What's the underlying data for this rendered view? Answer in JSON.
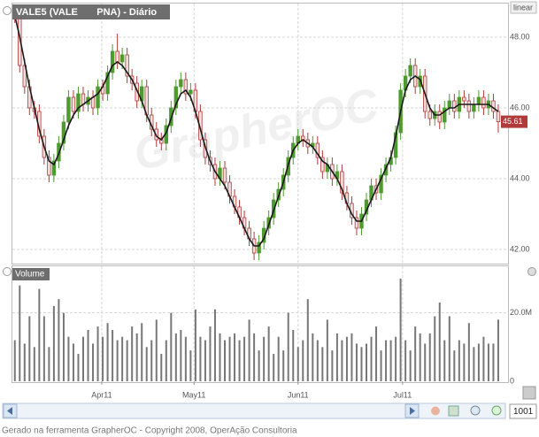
{
  "chart_data": {
    "type": "candlestick",
    "title": "VALE5 (VALE       PNA) - Diário",
    "scale_label": "linear",
    "watermark": "GrapherOC",
    "up_color": "#4f9a2e",
    "down_color": "#b03a3a",
    "xlim": [
      -0.5,
      101
    ],
    "xticks": [
      {
        "value": 17.8,
        "label": "Apr11"
      },
      {
        "value": 36.7,
        "label": "May11"
      },
      {
        "value": 58,
        "label": "Jun11"
      },
      {
        "value": 79.4,
        "label": "Jul11"
      }
    ],
    "ylim": [
      41.6,
      48.95
    ],
    "yticks": [
      {
        "value": 42,
        "label": "42.00"
      },
      {
        "value": 44,
        "label": "44.00"
      },
      {
        "value": 46,
        "label": "46.00"
      },
      {
        "value": 48,
        "label": "48.00"
      }
    ],
    "grid": true,
    "candles": [
      [
        48.8,
        48.9,
        48.4,
        48.6
      ],
      [
        48.6,
        48.8,
        47.0,
        47.2
      ],
      [
        47.2,
        47.4,
        46.4,
        46.6
      ],
      [
        46.6,
        46.8,
        45.8,
        46.0
      ],
      [
        46.0,
        46.2,
        45.7,
        45.9
      ],
      [
        45.9,
        46.1,
        45.0,
        45.2
      ],
      [
        45.2,
        45.4,
        44.4,
        44.6
      ],
      [
        44.6,
        44.8,
        43.9,
        44.1
      ],
      [
        44.1,
        44.7,
        43.9,
        44.5
      ],
      [
        44.5,
        45.2,
        44.3,
        45.0
      ],
      [
        45.0,
        45.8,
        44.8,
        45.6
      ],
      [
        45.6,
        46.5,
        45.4,
        46.3
      ],
      [
        46.3,
        46.5,
        45.7,
        45.9
      ],
      [
        45.9,
        46.6,
        45.7,
        46.4
      ],
      [
        46.4,
        46.6,
        45.9,
        46.1
      ],
      [
        46.1,
        46.5,
        45.9,
        46.3
      ],
      [
        46.3,
        46.5,
        45.8,
        46.0
      ],
      [
        46.0,
        46.8,
        45.8,
        46.6
      ],
      [
        46.6,
        46.8,
        46.2,
        46.4
      ],
      [
        46.4,
        47.2,
        46.2,
        47.0
      ],
      [
        47.0,
        47.8,
        46.8,
        47.6
      ],
      [
        47.6,
        48.1,
        47.1,
        47.3
      ],
      [
        47.3,
        47.7,
        47.1,
        47.5
      ],
      [
        47.5,
        47.7,
        46.7,
        46.9
      ],
      [
        46.9,
        47.1,
        46.5,
        46.7
      ],
      [
        46.7,
        46.9,
        46.0,
        46.2
      ],
      [
        46.2,
        46.8,
        46.0,
        46.6
      ],
      [
        46.6,
        46.8,
        45.6,
        45.8
      ],
      [
        45.8,
        46.0,
        45.2,
        45.4
      ],
      [
        45.4,
        45.6,
        44.9,
        45.1
      ],
      [
        45.1,
        45.3,
        44.8,
        45.0
      ],
      [
        45.0,
        45.7,
        44.8,
        45.5
      ],
      [
        45.5,
        46.2,
        45.3,
        46.0
      ],
      [
        46.0,
        46.8,
        45.8,
        46.6
      ],
      [
        46.6,
        47.0,
        46.4,
        46.8
      ],
      [
        46.8,
        47.0,
        46.2,
        46.4
      ],
      [
        46.4,
        46.7,
        46.2,
        46.5
      ],
      [
        46.5,
        46.7,
        45.7,
        45.9
      ],
      [
        45.9,
        46.1,
        44.9,
        45.1
      ],
      [
        45.1,
        45.3,
        44.4,
        44.6
      ],
      [
        44.6,
        44.8,
        44.2,
        44.4
      ],
      [
        44.4,
        44.6,
        43.8,
        44.0
      ],
      [
        44.0,
        44.5,
        43.8,
        44.3
      ],
      [
        44.3,
        44.5,
        43.7,
        43.9
      ],
      [
        43.9,
        44.1,
        43.3,
        43.5
      ],
      [
        43.5,
        43.7,
        43.0,
        43.2
      ],
      [
        43.2,
        43.4,
        42.7,
        42.9
      ],
      [
        42.9,
        43.1,
        42.4,
        42.6
      ],
      [
        42.6,
        42.8,
        42.1,
        42.3
      ],
      [
        42.3,
        42.5,
        41.7,
        41.9
      ],
      [
        41.9,
        42.4,
        41.7,
        42.2
      ],
      [
        42.2,
        42.8,
        42.0,
        42.6
      ],
      [
        42.6,
        43.1,
        42.4,
        42.9
      ],
      [
        42.9,
        43.6,
        42.7,
        43.4
      ],
      [
        43.4,
        43.9,
        43.2,
        43.7
      ],
      [
        43.7,
        44.3,
        43.5,
        44.1
      ],
      [
        44.1,
        44.8,
        43.9,
        44.6
      ],
      [
        44.6,
        45.2,
        44.4,
        45.0
      ],
      [
        45.0,
        45.4,
        44.8,
        45.2
      ],
      [
        45.2,
        45.4,
        44.9,
        45.1
      ],
      [
        45.1,
        45.3,
        44.7,
        44.9
      ],
      [
        44.9,
        45.2,
        44.7,
        45.0
      ],
      [
        45.0,
        45.2,
        44.4,
        44.6
      ],
      [
        44.6,
        44.8,
        44.0,
        44.2
      ],
      [
        44.2,
        44.6,
        44.0,
        44.4
      ],
      [
        44.4,
        44.6,
        43.8,
        44.0
      ],
      [
        44.0,
        44.4,
        43.8,
        44.2
      ],
      [
        44.2,
        44.4,
        43.4,
        43.6
      ],
      [
        43.6,
        43.8,
        43.1,
        43.3
      ],
      [
        43.3,
        43.5,
        42.7,
        42.9
      ],
      [
        42.9,
        43.1,
        42.4,
        42.6
      ],
      [
        42.6,
        43.2,
        42.4,
        43.0
      ],
      [
        43.0,
        43.6,
        42.8,
        43.4
      ],
      [
        43.4,
        44.0,
        43.2,
        43.8
      ],
      [
        43.8,
        44.0,
        43.4,
        43.6
      ],
      [
        43.6,
        44.3,
        43.4,
        44.1
      ],
      [
        44.1,
        44.6,
        43.9,
        44.4
      ],
      [
        44.4,
        44.8,
        44.2,
        44.6
      ],
      [
        44.6,
        45.5,
        44.4,
        45.3
      ],
      [
        45.3,
        46.7,
        45.1,
        46.5
      ],
      [
        46.5,
        47.1,
        46.3,
        46.9
      ],
      [
        46.9,
        47.4,
        46.7,
        47.2
      ],
      [
        47.2,
        47.4,
        46.4,
        46.6
      ],
      [
        46.6,
        47.1,
        46.4,
        46.9
      ],
      [
        46.9,
        47.1,
        45.7,
        45.9
      ],
      [
        45.9,
        46.1,
        45.5,
        45.7
      ],
      [
        45.7,
        46.1,
        45.5,
        45.9
      ],
      [
        45.9,
        46.1,
        45.4,
        45.6
      ],
      [
        45.6,
        46.2,
        45.4,
        46.0
      ],
      [
        46.0,
        46.4,
        45.8,
        46.2
      ],
      [
        46.2,
        46.4,
        45.7,
        45.9
      ],
      [
        45.9,
        46.5,
        45.7,
        46.3
      ],
      [
        46.3,
        46.5,
        46.0,
        46.2
      ],
      [
        46.2,
        46.4,
        45.7,
        45.9
      ],
      [
        45.9,
        46.3,
        45.7,
        46.1
      ],
      [
        46.1,
        46.5,
        45.9,
        46.3
      ],
      [
        46.3,
        46.5,
        45.8,
        46.0
      ],
      [
        46.0,
        46.4,
        45.8,
        46.2
      ],
      [
        46.2,
        46.4,
        45.7,
        45.9
      ],
      [
        45.9,
        46.1,
        45.3,
        45.61
      ]
    ],
    "moving_average": {
      "color": "#1a1a1a",
      "values": [
        48.6,
        48.0,
        47.3,
        46.6,
        46.0,
        45.4,
        44.9,
        44.5,
        44.4,
        44.7,
        45.1,
        45.5,
        45.8,
        46.0,
        46.1,
        46.2,
        46.3,
        46.4,
        46.6,
        46.9,
        47.2,
        47.3,
        47.2,
        47.0,
        46.8,
        46.5,
        46.2,
        45.8,
        45.5,
        45.2,
        45.1,
        45.3,
        45.7,
        46.1,
        46.4,
        46.5,
        46.3,
        45.9,
        45.4,
        44.9,
        44.5,
        44.2,
        44.0,
        43.8,
        43.5,
        43.2,
        42.9,
        42.6,
        42.3,
        42.1,
        42.1,
        42.3,
        42.7,
        43.1,
        43.5,
        43.9,
        44.4,
        44.8,
        45.0,
        45.1,
        45.0,
        44.9,
        44.7,
        44.5,
        44.4,
        44.2,
        44.0,
        43.7,
        43.3,
        43.0,
        42.8,
        42.8,
        43.1,
        43.4,
        43.7,
        44.0,
        44.3,
        44.6,
        45.2,
        45.9,
        46.5,
        46.8,
        46.9,
        46.8,
        46.4,
        46.0,
        45.8,
        45.8,
        45.9,
        46.0,
        46.0,
        46.1,
        46.1,
        46.1,
        46.1,
        46.1,
        46.1,
        46.1,
        46.0,
        45.9
      ]
    },
    "volume": {
      "title": "Volume",
      "color": "#777777",
      "ylim": [
        0,
        33.6
      ],
      "yticks": [
        0,
        {
          "value": 20,
          "label": "20.0M"
        }
      ],
      "values": [
        12,
        28,
        11,
        19,
        10,
        27,
        19,
        10,
        22,
        24,
        20,
        13,
        11,
        8,
        13,
        15,
        11,
        16,
        13,
        17,
        15,
        12,
        13,
        12,
        16,
        14,
        17,
        10,
        12,
        18,
        8,
        12,
        20,
        14,
        15,
        13,
        9,
        21,
        13,
        12,
        16,
        21,
        14,
        12,
        13,
        14,
        12,
        13,
        18,
        14,
        9,
        13,
        16,
        8,
        13,
        9,
        20,
        15,
        10,
        12,
        24,
        14,
        12,
        10,
        18,
        9,
        14,
        12,
        13,
        14,
        11,
        10,
        11,
        13,
        16,
        9,
        12,
        12,
        13,
        30,
        12,
        9,
        16,
        14,
        11,
        14,
        19,
        23,
        12,
        19,
        9,
        12,
        11,
        17,
        10,
        11,
        13,
        11,
        11,
        18
      ]
    }
  },
  "zoom": "1001",
  "footer": "Gerado na ferramenta GrapherOC - Copyright 2008, OperAção Consultoria"
}
